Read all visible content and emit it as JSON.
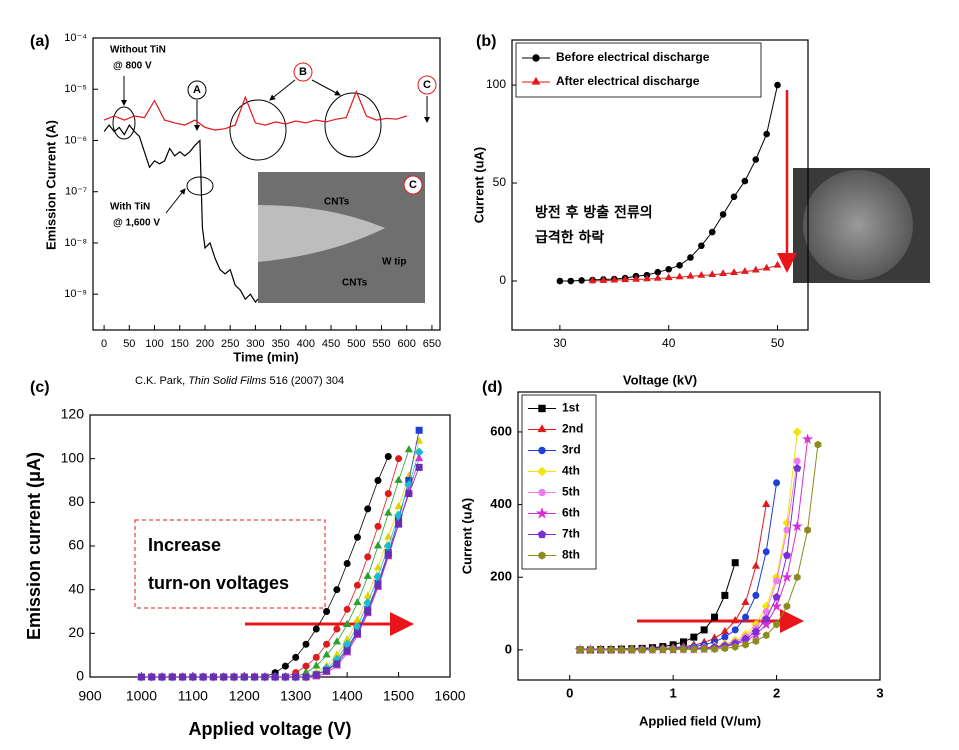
{
  "chart_data": [
    {
      "type": "line",
      "title": "(a)",
      "xlabel": "Time (min)",
      "ylabel": "Emission Current (A)",
      "yscale": "log",
      "xlim": [
        -22,
        666
      ],
      "ylim": [
        2e-10,
        0.0001
      ],
      "xticks": [
        0,
        50,
        100,
        150,
        200,
        250,
        300,
        350,
        400,
        450,
        500,
        550,
        600,
        650
      ],
      "yticks": [
        {
          "value": 1e-09,
          "label": "10⁻⁹"
        },
        {
          "value": 1e-08,
          "label": "10⁻⁸"
        },
        {
          "value": 1e-07,
          "label": "10⁻⁷"
        },
        {
          "value": 1e-06,
          "label": "10⁻⁶"
        },
        {
          "value": 1e-05,
          "label": "10⁻⁵"
        },
        {
          "value": 0.0001,
          "label": "10⁻⁴"
        }
      ],
      "series": [
        {
          "color": "#000000",
          "x": [
            0,
            10,
            20,
            30,
            40,
            50,
            60,
            70,
            80,
            90,
            100,
            110,
            120,
            130,
            140,
            150,
            160,
            170,
            180,
            190,
            195,
            200,
            210,
            220,
            230,
            240,
            250,
            260,
            270,
            280,
            290,
            300,
            305
          ],
          "values": [
            1.5e-06,
            2e-06,
            1.5e-06,
            1.8e-06,
            1.3e-06,
            2e-06,
            1.5e-06,
            1.2e-06,
            6e-07,
            3e-07,
            4e-07,
            3.5e-07,
            4e-07,
            7e-07,
            5e-07,
            6e-07,
            5e-07,
            6e-07,
            8e-07,
            1e-06,
            2e-08,
            8e-09,
            1e-08,
            5e-09,
            3e-09,
            2.5e-09,
            3e-09,
            1.5e-09,
            1.2e-09,
            8e-10,
            1e-09,
            7e-10,
            8e-10
          ]
        },
        {
          "color": "#e8151b",
          "x": [
            0,
            20,
            40,
            60,
            80,
            100,
            120,
            140,
            160,
            180,
            200,
            220,
            240,
            260,
            280,
            300,
            320,
            340,
            360,
            380,
            400,
            420,
            440,
            460,
            480,
            500,
            520,
            540,
            560,
            580,
            600
          ],
          "values": [
            2.5e-06,
            3e-06,
            2.5e-06,
            3e-06,
            2.8e-06,
            6e-06,
            2.5e-06,
            2.2e-06,
            2e-06,
            2.5e-06,
            1.8e-06,
            1.6e-06,
            1.7e-06,
            2e-06,
            7e-06,
            2.2e-06,
            2e-06,
            2.3e-06,
            2.1e-06,
            2.4e-06,
            2.2e-06,
            2.5e-06,
            2.3e-06,
            2.6e-06,
            2.8e-06,
            9e-06,
            3e-06,
            2.5e-06,
            2.7e-06,
            2.6e-06,
            3e-06
          ]
        }
      ],
      "annotations": [
        "Without TiN",
        "@ 800 V",
        "With TiN",
        "@ 1,600 V",
        "A",
        "B",
        "C",
        "CNTs",
        "CNTs",
        "W tip",
        "C"
      ],
      "source": [
        "C.K. Park, ",
        "Thin Solid Films",
        " 516 (2007) 304"
      ]
    },
    {
      "type": "line",
      "title": "(b)",
      "xlabel": "Voltage (kV)",
      "ylabel": "Current (uA)",
      "xlim": [
        25.6,
        52.8
      ],
      "ylim": [
        -25,
        123
      ],
      "xticks": [
        30,
        40,
        50
      ],
      "yticks": [
        0,
        50,
        100
      ],
      "legend": "upper left",
      "series": [
        {
          "name": "Before electrical discharge",
          "color": "#000000",
          "marker": "circle",
          "x": [
            30,
            31,
            32,
            33,
            34,
            35,
            36,
            37,
            38,
            39,
            40,
            41,
            42,
            43,
            44,
            45,
            46,
            47,
            48,
            49,
            50
          ],
          "values": [
            0,
            0,
            0.3,
            0.5,
            0.8,
            1,
            1.5,
            2.5,
            3,
            4.5,
            6,
            8,
            12,
            18,
            25,
            34,
            43,
            51,
            62,
            75,
            100
          ]
        },
        {
          "name": "After electrical discharge",
          "color": "#e31a1c",
          "marker": "triangle",
          "x": [
            33,
            34,
            35,
            36,
            37,
            38,
            39,
            40,
            41,
            42,
            43,
            44,
            45,
            46,
            47,
            48,
            49,
            50
          ],
          "values": [
            0,
            0.2,
            0.4,
            0.6,
            0.8,
            1,
            1.3,
            1.6,
            2,
            2.4,
            2.8,
            3.2,
            3.7,
            4.2,
            4.8,
            5.5,
            6.5,
            8
          ]
        }
      ],
      "annotations": [
        "방전 후 방출 전류의",
        "급격한 하락"
      ]
    },
    {
      "type": "line",
      "title": "(c)",
      "xlabel": "Applied voltage (V)",
      "ylabel": "Emission current (μA)",
      "xlim": [
        900,
        1600
      ],
      "ylim": [
        0,
        120
      ],
      "xticks": [
        900,
        1000,
        1100,
        1200,
        1300,
        1400,
        1500,
        1600
      ],
      "yticks": [
        0,
        20,
        40,
        60,
        80,
        100,
        120
      ],
      "x": [
        1000,
        1020,
        1040,
        1060,
        1080,
        1100,
        1120,
        1140,
        1160,
        1180,
        1200,
        1220,
        1240,
        1260,
        1280,
        1300,
        1320,
        1340,
        1360,
        1380,
        1400,
        1420,
        1440,
        1460,
        1480,
        1500,
        1520,
        1540
      ],
      "series": [
        {
          "color": "#000000",
          "marker": "circle",
          "values": [
            0,
            0,
            0,
            0,
            0,
            0,
            0,
            0,
            0,
            0,
            0,
            0,
            0,
            2,
            5,
            9,
            15,
            22,
            30,
            40,
            52,
            64,
            77,
            90,
            101,
            null,
            null,
            null
          ]
        },
        {
          "color": "#e31a1c",
          "marker": "circle",
          "values": [
            0,
            0,
            0,
            0,
            0,
            0,
            0,
            0,
            0,
            0,
            0,
            0,
            0,
            0,
            0,
            2,
            5,
            9,
            15,
            22,
            31,
            42,
            55,
            69,
            84,
            100,
            null,
            null
          ]
        },
        {
          "color": "#2ca02c",
          "marker": "triangle",
          "values": [
            0,
            0,
            0,
            0,
            0,
            0,
            0,
            0,
            0,
            0,
            0,
            0,
            0,
            0,
            0,
            0,
            2,
            5,
            10,
            16,
            24,
            34,
            46,
            60,
            75,
            90,
            104,
            null
          ]
        },
        {
          "color": "#e6d200",
          "marker": "triangle",
          "values": [
            0,
            0,
            0,
            0,
            0,
            0,
            0,
            0,
            0,
            0,
            0,
            0,
            0,
            0,
            0,
            0,
            0,
            2,
            5,
            10,
            17,
            26,
            37,
            50,
            64,
            78,
            92,
            108
          ]
        },
        {
          "color": "#1f3fd6",
          "marker": "square",
          "values": [
            0,
            0,
            0,
            0,
            0,
            0,
            0,
            0,
            0,
            0,
            0,
            0,
            0,
            0,
            0,
            0,
            0,
            1,
            3,
            7,
            13,
            21,
            31,
            43,
            57,
            72,
            90,
            113
          ]
        },
        {
          "color": "#17becf",
          "marker": "diamond",
          "values": [
            0,
            0,
            0,
            0,
            0,
            0,
            0,
            0,
            0,
            0,
            0,
            0,
            0,
            0,
            0,
            0,
            0,
            1,
            4,
            8,
            15,
            23,
            34,
            46,
            60,
            74,
            88,
            103
          ]
        },
        {
          "color": "#d62fd6",
          "marker": "triangle",
          "values": [
            0,
            0,
            0,
            0,
            0,
            0,
            0,
            0,
            0,
            0,
            0,
            0,
            0,
            0,
            0,
            0,
            0,
            0,
            2,
            5,
            11,
            19,
            29,
            41,
            55,
            70,
            85,
            100
          ]
        },
        {
          "color": "#6a2fb0",
          "marker": "square",
          "values": [
            0,
            0,
            0,
            0,
            0,
            0,
            0,
            0,
            0,
            0,
            0,
            0,
            0,
            0,
            0,
            0,
            0,
            1,
            3,
            6,
            12,
            20,
            30,
            42,
            56,
            70,
            84,
            96
          ]
        }
      ],
      "annotations": [
        "Increase",
        "turn-on voltages"
      ]
    },
    {
      "type": "line",
      "title": "(d)",
      "xlabel": "Applied field (V/um)",
      "ylabel": "Current (uA)",
      "xlim": [
        -0.5,
        3
      ],
      "ylim": [
        -83,
        710
      ],
      "xticks": [
        0,
        1,
        2,
        3
      ],
      "yticks": [
        0,
        200,
        400,
        600
      ],
      "legend": "upper left",
      "x": [
        0.1,
        0.2,
        0.3,
        0.4,
        0.5,
        0.6,
        0.7,
        0.8,
        0.9,
        1.0,
        1.1,
        1.2,
        1.3,
        1.4,
        1.5,
        1.6,
        1.7,
        1.8,
        1.9,
        2.0,
        2.1,
        2.2,
        2.3,
        2.4
      ],
      "series": [
        {
          "name": "1st",
          "color": "#000000",
          "marker": "square",
          "values": [
            0,
            0,
            1,
            1,
            2,
            3,
            4,
            6,
            9,
            14,
            22,
            35,
            55,
            90,
            150,
            240,
            null,
            null,
            null,
            null,
            null,
            null,
            null,
            null
          ]
        },
        {
          "name": "2nd",
          "color": "#e31a1c",
          "marker": "triangle",
          "values": [
            0,
            0,
            0,
            1,
            1,
            2,
            2,
            3,
            4,
            6,
            9,
            13,
            20,
            32,
            50,
            80,
            130,
            230,
            400,
            null,
            null,
            null,
            null,
            null
          ]
        },
        {
          "name": "3rd",
          "color": "#1f3fd6",
          "marker": "circle",
          "values": [
            0,
            0,
            0,
            0,
            1,
            1,
            2,
            2,
            3,
            4,
            6,
            9,
            14,
            22,
            35,
            55,
            90,
            150,
            270,
            460,
            null,
            null,
            null,
            null
          ]
        },
        {
          "name": "4th",
          "color": "#f2e600",
          "marker": "diamond",
          "values": [
            0,
            0,
            0,
            0,
            0,
            1,
            1,
            1,
            2,
            2,
            3,
            4,
            6,
            10,
            16,
            26,
            42,
            70,
            120,
            200,
            350,
            600,
            null,
            null
          ]
        },
        {
          "name": "5th",
          "color": "#f07cf0",
          "marker": "circle",
          "values": [
            0,
            0,
            0,
            0,
            0,
            0,
            1,
            1,
            1,
            2,
            2,
            3,
            5,
            8,
            13,
            22,
            36,
            60,
            105,
            190,
            330,
            520,
            null,
            null
          ]
        },
        {
          "name": "6th",
          "color": "#d62fd6",
          "marker": "star",
          "values": [
            0,
            0,
            0,
            0,
            0,
            0,
            1,
            1,
            1,
            1,
            2,
            2,
            3,
            5,
            9,
            15,
            25,
            42,
            70,
            120,
            200,
            340,
            580,
            null
          ]
        },
        {
          "name": "7th",
          "color": "#7b2fd6",
          "marker": "pentagon",
          "values": [
            0,
            0,
            0,
            0,
            0,
            0,
            1,
            1,
            1,
            1,
            2,
            3,
            4,
            7,
            11,
            18,
            30,
            50,
            85,
            145,
            260,
            500,
            null,
            null
          ]
        },
        {
          "name": "8th",
          "color": "#8c8c1e",
          "marker": "hexagon",
          "values": [
            0,
            0,
            0,
            0,
            0,
            0,
            0,
            0,
            1,
            1,
            1,
            1,
            2,
            2,
            4,
            8,
            14,
            24,
            40,
            70,
            120,
            200,
            330,
            565
          ]
        }
      ]
    }
  ]
}
